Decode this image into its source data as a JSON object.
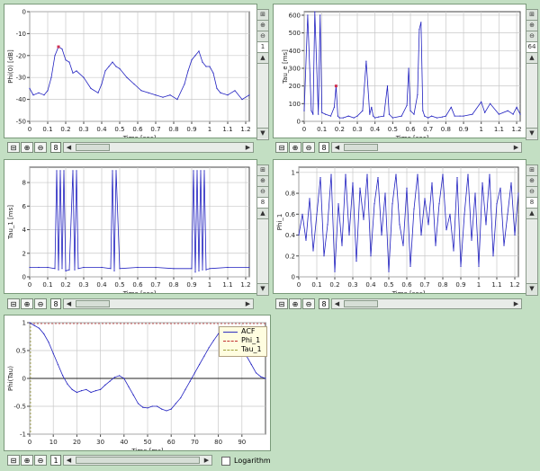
{
  "plots": [
    {
      "id": "phi0",
      "ylabel": "Phi(0) [dB]",
      "xlabel": "Time [sec]",
      "yticks": [
        "0",
        "-10",
        "-20",
        "-30",
        "-40",
        "-50"
      ],
      "xticks": [
        "0",
        "0.1",
        "0.2",
        "0.3",
        "0.4",
        "0.5",
        "0.6",
        "0.7",
        "0.8",
        "0.9",
        "1",
        "1.1",
        "1.2"
      ],
      "scale_value": "1",
      "zoom_value": "8"
    },
    {
      "id": "tau_e",
      "ylabel": "Tau_e [ms]",
      "xlabel": "Time [sec]",
      "yticks": [
        "600",
        "500",
        "400",
        "300",
        "200",
        "100",
        "0"
      ],
      "xticks": [
        "0",
        "0.1",
        "0.2",
        "0.3",
        "0.4",
        "0.5",
        "0.6",
        "0.7",
        "0.8",
        "0.9",
        "1",
        "1.1",
        "1.2"
      ],
      "scale_value": "64",
      "zoom_value": "8"
    },
    {
      "id": "tau_1",
      "ylabel": "Tau_1 [ms]",
      "xlabel": "Time [sec]",
      "yticks": [
        "8",
        "6",
        "4",
        "2",
        "0"
      ],
      "xticks": [
        "0",
        "0.1",
        "0.2",
        "0.3",
        "0.4",
        "0.5",
        "0.6",
        "0.7",
        "0.8",
        "0.9",
        "1",
        "1.1",
        "1.2"
      ],
      "scale_value": "8",
      "zoom_value": "8"
    },
    {
      "id": "phi_1",
      "ylabel": "Phi_1",
      "xlabel": "Time [sec]",
      "yticks": [
        "1",
        "0.8",
        "0.6",
        "0.4",
        "0.2",
        "0"
      ],
      "xticks": [
        "0",
        "0.1",
        "0.2",
        "0.3",
        "0.4",
        "0.5",
        "0.6",
        "0.7",
        "0.8",
        "0.9",
        "1",
        "1.1",
        "1.2"
      ],
      "scale_value": "8",
      "zoom_value": "8"
    },
    {
      "id": "acf",
      "ylabel": "Phi(Tau)",
      "xlabel": "Time [ms]",
      "yticks": [
        "1",
        "0.5",
        "0",
        "-0.5",
        "-1"
      ],
      "xticks": [
        "0",
        "10",
        "20",
        "30",
        "40",
        "50",
        "60",
        "70",
        "80",
        "90"
      ],
      "zoom_value": "1"
    }
  ],
  "legend": {
    "items": [
      {
        "label": "ACF",
        "color": "#3030c0",
        "dash": false
      },
      {
        "label": "Phi_1",
        "color": "#c03030",
        "dash": true
      },
      {
        "label": "Tau_1",
        "color": "#a0a040",
        "dash": true
      }
    ]
  },
  "logarithm_label": "Logarithm",
  "icons": {
    "zoom_in": "zoom-in-icon",
    "zoom_out": "zoom-out-icon",
    "fit": "fit-icon",
    "scroll_left": "arrow-left-icon",
    "scroll_right": "arrow-right-icon",
    "scroll_up": "arrow-up-icon",
    "scroll_down": "arrow-down-icon"
  },
  "colors": {
    "background": "#c3dfc3",
    "trace": "#2020c0",
    "grid": "#c8c8c8",
    "marker": "#d03050"
  },
  "chart_data": [
    {
      "type": "line",
      "title": "",
      "xlabel": "Time [sec]",
      "ylabel": "Phi(0) [dB]",
      "xlim": [
        0,
        1.22
      ],
      "ylim": [
        -50,
        0
      ],
      "x": [
        0,
        0.02,
        0.05,
        0.08,
        0.1,
        0.12,
        0.14,
        0.16,
        0.18,
        0.2,
        0.22,
        0.24,
        0.26,
        0.3,
        0.34,
        0.38,
        0.4,
        0.42,
        0.44,
        0.46,
        0.48,
        0.5,
        0.54,
        0.58,
        0.62,
        0.66,
        0.7,
        0.74,
        0.78,
        0.82,
        0.86,
        0.88,
        0.9,
        0.92,
        0.94,
        0.96,
        0.98,
        1.0,
        1.02,
        1.04,
        1.06,
        1.1,
        1.14,
        1.18,
        1.22
      ],
      "y": [
        -35,
        -38,
        -37,
        -38,
        -36,
        -30,
        -20,
        -16,
        -17,
        -22,
        -23,
        -28,
        -27,
        -30,
        -35,
        -37,
        -33,
        -27,
        -25,
        -23,
        -25,
        -26,
        -30,
        -33,
        -36,
        -37,
        -38,
        -39,
        -38,
        -40,
        -33,
        -27,
        -22,
        -20,
        -18,
        -23,
        -25,
        -25,
        -28,
        -35,
        -37,
        -38,
        -36,
        -40,
        -38
      ]
    },
    {
      "type": "line",
      "title": "",
      "xlabel": "Time [sec]",
      "ylabel": "Tau_e [ms]",
      "xlim": [
        0,
        1.22
      ],
      "ylim": [
        0,
        620
      ],
      "x": [
        0,
        0.02,
        0.04,
        0.05,
        0.06,
        0.08,
        0.09,
        0.1,
        0.12,
        0.15,
        0.17,
        0.18,
        0.19,
        0.2,
        0.22,
        0.25,
        0.28,
        0.3,
        0.33,
        0.35,
        0.37,
        0.38,
        0.39,
        0.4,
        0.42,
        0.45,
        0.47,
        0.48,
        0.5,
        0.55,
        0.58,
        0.59,
        0.6,
        0.62,
        0.64,
        0.65,
        0.66,
        0.67,
        0.68,
        0.7,
        0.72,
        0.75,
        0.78,
        0.8,
        0.83,
        0.85,
        0.88,
        0.9,
        0.95,
        1.0,
        1.02,
        1.05,
        1.1,
        1.15,
        1.18,
        1.2,
        1.22
      ],
      "y": [
        60,
        600,
        60,
        40,
        620,
        40,
        600,
        50,
        40,
        30,
        80,
        200,
        30,
        20,
        20,
        30,
        20,
        30,
        60,
        340,
        40,
        80,
        30,
        20,
        25,
        30,
        200,
        40,
        20,
        30,
        90,
        300,
        60,
        40,
        150,
        520,
        560,
        60,
        30,
        20,
        30,
        20,
        25,
        30,
        80,
        30,
        30,
        30,
        40,
        110,
        50,
        100,
        40,
        60,
        40,
        80,
        40
      ]
    },
    {
      "type": "line",
      "title": "",
      "xlabel": "Time [sec]",
      "ylabel": "Tau_1 [ms]",
      "xlim": [
        0,
        1.22
      ],
      "ylim": [
        0,
        9.3
      ],
      "x": [
        0,
        0.05,
        0.1,
        0.14,
        0.15,
        0.16,
        0.17,
        0.18,
        0.19,
        0.2,
        0.22,
        0.24,
        0.25,
        0.26,
        0.27,
        0.3,
        0.4,
        0.45,
        0.46,
        0.47,
        0.48,
        0.5,
        0.6,
        0.7,
        0.8,
        0.9,
        0.91,
        0.92,
        0.93,
        0.94,
        0.95,
        0.96,
        0.97,
        0.98,
        1.0,
        1.1,
        1.22
      ],
      "y": [
        0.8,
        0.8,
        0.8,
        0.7,
        9,
        0.6,
        9,
        0.7,
        9,
        0.5,
        0.6,
        9,
        0.6,
        9,
        0.7,
        0.8,
        0.8,
        0.7,
        9,
        0.5,
        9,
        0.7,
        0.8,
        0.8,
        0.7,
        0.7,
        9,
        0.4,
        9,
        0.5,
        9,
        0.6,
        9,
        0.6,
        0.7,
        0.8,
        0.8
      ]
    },
    {
      "type": "line",
      "title": "",
      "xlabel": "Time [sec]",
      "ylabel": "Phi_1",
      "xlim": [
        0,
        1.22
      ],
      "ylim": [
        0,
        1.05
      ],
      "x": [
        0,
        0.02,
        0.04,
        0.06,
        0.08,
        0.1,
        0.12,
        0.14,
        0.16,
        0.18,
        0.2,
        0.22,
        0.24,
        0.26,
        0.28,
        0.3,
        0.32,
        0.34,
        0.36,
        0.38,
        0.4,
        0.42,
        0.44,
        0.46,
        0.48,
        0.5,
        0.52,
        0.54,
        0.56,
        0.58,
        0.6,
        0.62,
        0.64,
        0.66,
        0.68,
        0.7,
        0.72,
        0.74,
        0.76,
        0.78,
        0.8,
        0.82,
        0.84,
        0.86,
        0.88,
        0.9,
        0.92,
        0.94,
        0.96,
        0.98,
        1.0,
        1.02,
        1.04,
        1.06,
        1.08,
        1.1,
        1.12,
        1.14,
        1.16,
        1.18,
        1.2,
        1.22
      ],
      "y": [
        0.4,
        0.6,
        0.35,
        0.75,
        0.25,
        0.6,
        0.95,
        0.2,
        0.5,
        0.98,
        0.05,
        0.7,
        0.3,
        0.98,
        0.4,
        0.9,
        0.15,
        0.85,
        0.55,
        0.98,
        0.2,
        0.7,
        0.95,
        0.4,
        0.8,
        0.05,
        0.7,
        0.98,
        0.5,
        0.3,
        0.85,
        0.1,
        0.65,
        0.98,
        0.4,
        0.75,
        0.5,
        0.9,
        0.3,
        0.7,
        0.98,
        0.45,
        0.6,
        0.25,
        0.95,
        0.1,
        0.6,
        0.98,
        0.35,
        0.8,
        0.1,
        0.9,
        0.5,
        0.98,
        0.2,
        0.7,
        0.85,
        0.3,
        0.6,
        0.9,
        0.4,
        0.8
      ]
    },
    {
      "type": "line",
      "title": "",
      "xlabel": "Time [ms]",
      "ylabel": "Phi(Tau)",
      "xlim": [
        0,
        100
      ],
      "ylim": [
        -1,
        1
      ],
      "series": [
        {
          "name": "ACF",
          "x": [
            0,
            2,
            4,
            6,
            8,
            10,
            12,
            14,
            16,
            18,
            20,
            22,
            24,
            26,
            28,
            30,
            32,
            34,
            36,
            38,
            40,
            42,
            44,
            46,
            48,
            50,
            52,
            54,
            56,
            58,
            60,
            62,
            64,
            66,
            68,
            70,
            72,
            74,
            76,
            78,
            80,
            82,
            84,
            86,
            88,
            90,
            92,
            94,
            96,
            98,
            100
          ],
          "y": [
            1,
            0.95,
            0.9,
            0.8,
            0.65,
            0.45,
            0.25,
            0.05,
            -0.1,
            -0.2,
            -0.25,
            -0.22,
            -0.2,
            -0.25,
            -0.22,
            -0.2,
            -0.12,
            -0.05,
            0.02,
            0.05,
            0.0,
            -0.15,
            -0.3,
            -0.45,
            -0.52,
            -0.53,
            -0.5,
            -0.5,
            -0.55,
            -0.58,
            -0.55,
            -0.45,
            -0.35,
            -0.2,
            -0.05,
            0.1,
            0.25,
            0.4,
            0.55,
            0.68,
            0.8,
            0.88,
            0.9,
            0.85,
            0.75,
            0.6,
            0.4,
            0.25,
            0.1,
            0.03,
            0.0
          ]
        }
      ]
    }
  ]
}
